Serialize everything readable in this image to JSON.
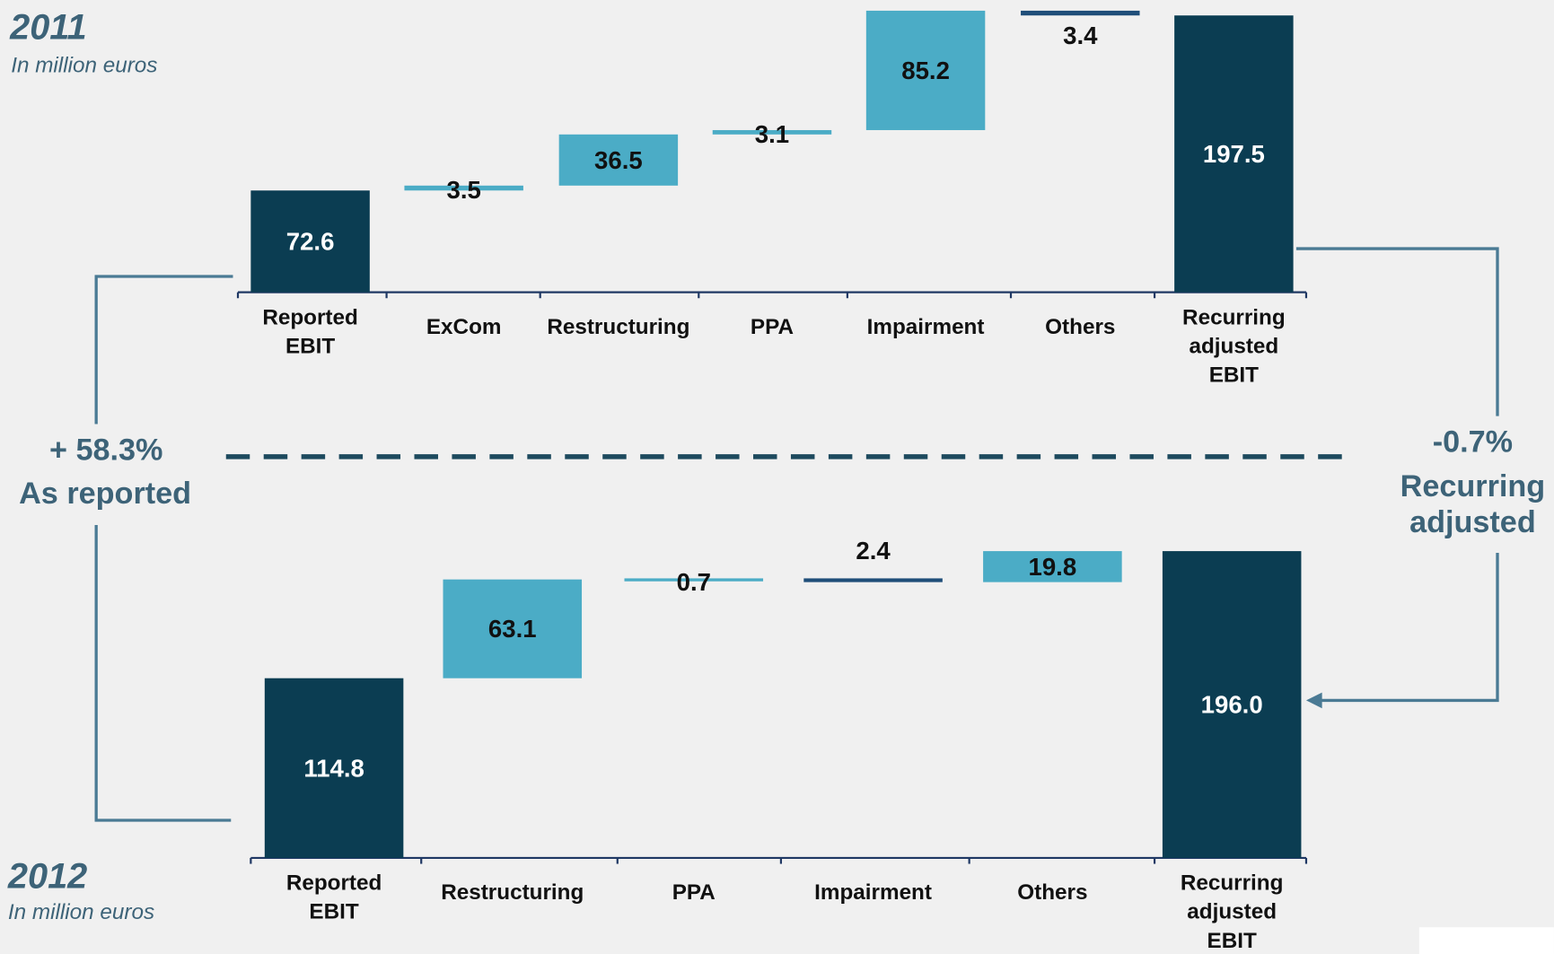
{
  "chart_data": [
    {
      "type": "waterfall",
      "title": "2011",
      "subtitle": "In million euros",
      "categories": [
        "Reported EBIT",
        "ExCom",
        "Restructuring",
        "PPA",
        "Impairment",
        "Others",
        "Recurring adjusted EBIT"
      ],
      "measures": [
        "absolute",
        "relative",
        "relative",
        "relative",
        "relative",
        "relative",
        "total"
      ],
      "values": [
        72.6,
        3.5,
        36.5,
        3.1,
        85.2,
        -3.4,
        197.5
      ],
      "value_labels": [
        "72.6",
        "3.5",
        "36.5",
        "3.1",
        "85.2",
        "3.4",
        "197.5"
      ],
      "total_color": "#0b3d52",
      "increase_color": "#4bacc6",
      "decrease_color": "#1f4e79",
      "ylim": [
        0,
        205
      ]
    },
    {
      "type": "waterfall",
      "title": "2012",
      "subtitle": "In million euros",
      "categories": [
        "Reported EBIT",
        "Restructuring",
        "PPA",
        "Impairment",
        "Others",
        "Recurring adjusted EBIT"
      ],
      "measures": [
        "absolute",
        "relative",
        "relative",
        "relative",
        "relative",
        "total"
      ],
      "values": [
        114.8,
        63.1,
        0.7,
        -2.4,
        19.8,
        196.0
      ],
      "value_labels": [
        "114.8",
        "63.1",
        "0.7",
        "2.4",
        "19.8",
        "196.0"
      ],
      "total_color": "#0b3d52",
      "increase_color": "#4bacc6",
      "decrease_color": "#1f4e79",
      "ylim": [
        0,
        200
      ]
    }
  ],
  "annotations": {
    "left_change": "+ 58.3%",
    "left_label": "As reported",
    "right_change": "-0.7%",
    "right_label_1": "Recurring",
    "right_label_2": "adjusted"
  }
}
